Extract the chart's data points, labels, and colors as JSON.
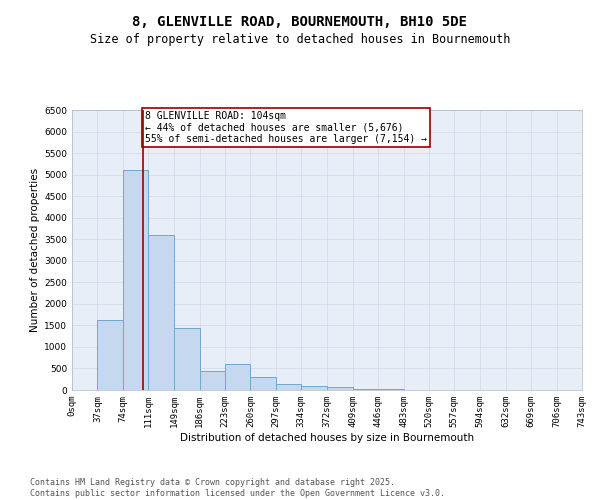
{
  "title": "8, GLENVILLE ROAD, BOURNEMOUTH, BH10 5DE",
  "subtitle": "Size of property relative to detached houses in Bournemouth",
  "xlabel": "Distribution of detached houses by size in Bournemouth",
  "ylabel": "Number of detached properties",
  "bin_edges": [
    0,
    37,
    74,
    111,
    149,
    186,
    223,
    260,
    297,
    334,
    372,
    409,
    446,
    483,
    520,
    557,
    594,
    632,
    669,
    706,
    743
  ],
  "bar_heights": [
    0,
    1620,
    5100,
    3600,
    1450,
    450,
    600,
    300,
    150,
    100,
    60,
    30,
    15,
    5,
    0,
    0,
    0,
    0,
    0,
    0
  ],
  "bar_color": "#c5d8ef",
  "bar_edge_color": "#6fa8d0",
  "property_size": 104,
  "vline_color": "#990000",
  "annotation_text": "8 GLENVILLE ROAD: 104sqm\n← 44% of detached houses are smaller (5,676)\n55% of semi-detached houses are larger (7,154) →",
  "annotation_box_facecolor": "#ffffff",
  "annotation_box_edgecolor": "#990000",
  "ylim_max": 6500,
  "ytick_step": 500,
  "grid_color": "#d0d8e8",
  "fig_facecolor": "#ffffff",
  "ax_facecolor": "#e8eef8",
  "footer_line1": "Contains HM Land Registry data © Crown copyright and database right 2025.",
  "footer_line2": "Contains public sector information licensed under the Open Government Licence v3.0.",
  "title_fontsize": 10,
  "subtitle_fontsize": 8.5,
  "axis_label_fontsize": 7.5,
  "tick_fontsize": 6.5,
  "annotation_fontsize": 7,
  "footer_fontsize": 6
}
